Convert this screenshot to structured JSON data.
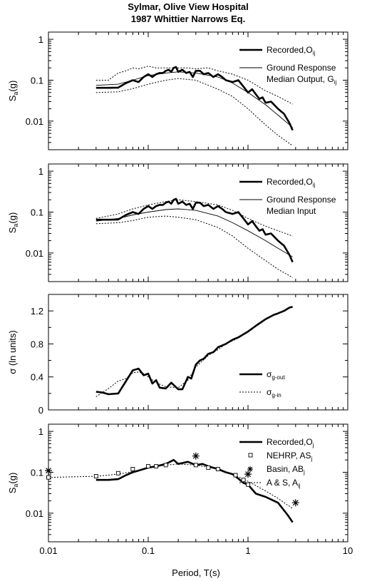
{
  "figure": {
    "title_line1": "Sylmar, Olive View Hospital",
    "title_line2": "1987 Whittier Narrows Eq.",
    "xlabel": "Period, T(s)"
  },
  "chart_data": [
    {
      "type": "line",
      "xscale": "log",
      "yscale": "log",
      "xlim": [
        0.01,
        10
      ],
      "ylim": [
        0.002,
        1.5
      ],
      "ylabel_main": "S",
      "ylabel_sub": "a",
      "ylabel_tail": "(g)",
      "yticks": [
        0.01,
        0.1,
        1
      ],
      "yticklabels": [
        "0.01",
        "0.1",
        "1"
      ],
      "legend": {
        "placement": "top-right",
        "items": [
          {
            "style": "thick",
            "text": "Recorded,O",
            "sub": "ij"
          },
          {
            "style": "thin",
            "text": "Ground Response",
            "text2": "Median Output, G",
            "sub2": "ij"
          }
        ]
      },
      "series": [
        {
          "style": "thick",
          "x": [
            0.03,
            0.04,
            0.05,
            0.06,
            0.07,
            0.08,
            0.09,
            0.1,
            0.11,
            0.12,
            0.13,
            0.14,
            0.15,
            0.16,
            0.17,
            0.18,
            0.19,
            0.2,
            0.22,
            0.24,
            0.26,
            0.28,
            0.3,
            0.33,
            0.36,
            0.4,
            0.45,
            0.5,
            0.55,
            0.6,
            0.7,
            0.8,
            0.9,
            1.0,
            1.1,
            1.2,
            1.3,
            1.4,
            1.5,
            1.7,
            2.0,
            2.3,
            2.6,
            2.8
          ],
          "y": [
            0.065,
            0.065,
            0.066,
            0.085,
            0.1,
            0.09,
            0.12,
            0.14,
            0.12,
            0.14,
            0.15,
            0.15,
            0.17,
            0.18,
            0.16,
            0.2,
            0.21,
            0.16,
            0.18,
            0.15,
            0.16,
            0.12,
            0.17,
            0.17,
            0.14,
            0.15,
            0.12,
            0.14,
            0.12,
            0.1,
            0.09,
            0.1,
            0.07,
            0.05,
            0.06,
            0.045,
            0.035,
            0.038,
            0.028,
            0.03,
            0.02,
            0.015,
            0.009,
            0.006
          ]
        },
        {
          "style": "thin",
          "x": [
            0.03,
            0.05,
            0.07,
            0.1,
            0.15,
            0.2,
            0.3,
            0.5,
            0.7,
            1.0,
            1.5,
            2.0,
            2.8
          ],
          "y": [
            0.075,
            0.08,
            0.1,
            0.13,
            0.15,
            0.16,
            0.15,
            0.12,
            0.085,
            0.05,
            0.025,
            0.014,
            0.007
          ]
        },
        {
          "style": "dotted",
          "x": [
            0.03,
            0.04,
            0.05,
            0.06,
            0.07,
            0.08,
            0.1,
            0.12,
            0.15,
            0.2,
            0.25,
            0.3,
            0.4,
            0.5,
            0.7,
            1.0,
            1.5,
            2.0,
            2.8
          ],
          "y": [
            0.1,
            0.1,
            0.15,
            0.17,
            0.2,
            0.19,
            0.22,
            0.2,
            0.2,
            0.2,
            0.2,
            0.19,
            0.2,
            0.17,
            0.14,
            0.1,
            0.055,
            0.04,
            0.026
          ]
        },
        {
          "style": "dotted",
          "x": [
            0.03,
            0.05,
            0.07,
            0.1,
            0.15,
            0.2,
            0.3,
            0.5,
            0.7,
            1.0,
            1.5,
            2.0,
            2.8
          ],
          "y": [
            0.05,
            0.052,
            0.062,
            0.08,
            0.1,
            0.11,
            0.1,
            0.06,
            0.04,
            0.02,
            0.008,
            0.0045,
            0.0025
          ]
        }
      ]
    },
    {
      "type": "line",
      "xscale": "log",
      "yscale": "log",
      "xlim": [
        0.01,
        10
      ],
      "ylim": [
        0.002,
        1.5
      ],
      "ylabel_main": "S",
      "ylabel_sub": "a",
      "ylabel_tail": "(g)",
      "yticks": [
        0.01,
        0.1,
        1
      ],
      "yticklabels": [
        "0.01",
        "0.1",
        "1"
      ],
      "legend": {
        "placement": "top-right",
        "items": [
          {
            "style": "thick",
            "text": "Recorded,O",
            "sub": "ij"
          },
          {
            "style": "thin",
            "text": "Ground Response",
            "text2": "Median Input",
            "sub2": ""
          }
        ]
      },
      "series": [
        {
          "style": "thick",
          "x": [
            0.03,
            0.04,
            0.05,
            0.06,
            0.07,
            0.08,
            0.09,
            0.1,
            0.11,
            0.12,
            0.13,
            0.14,
            0.15,
            0.16,
            0.17,
            0.18,
            0.19,
            0.2,
            0.22,
            0.24,
            0.26,
            0.28,
            0.3,
            0.33,
            0.36,
            0.4,
            0.45,
            0.5,
            0.55,
            0.6,
            0.7,
            0.8,
            0.9,
            1.0,
            1.1,
            1.2,
            1.3,
            1.4,
            1.5,
            1.7,
            2.0,
            2.3,
            2.6,
            2.8
          ],
          "y": [
            0.065,
            0.065,
            0.066,
            0.085,
            0.1,
            0.09,
            0.12,
            0.14,
            0.12,
            0.14,
            0.15,
            0.15,
            0.17,
            0.18,
            0.16,
            0.2,
            0.21,
            0.16,
            0.18,
            0.15,
            0.16,
            0.12,
            0.17,
            0.17,
            0.14,
            0.15,
            0.12,
            0.14,
            0.12,
            0.1,
            0.09,
            0.1,
            0.07,
            0.05,
            0.06,
            0.045,
            0.035,
            0.038,
            0.028,
            0.03,
            0.02,
            0.015,
            0.009,
            0.006
          ]
        },
        {
          "style": "thin",
          "x": [
            0.03,
            0.05,
            0.07,
            0.1,
            0.15,
            0.2,
            0.3,
            0.5,
            0.7,
            1.0,
            1.5,
            2.0,
            2.8
          ],
          "y": [
            0.06,
            0.07,
            0.085,
            0.1,
            0.115,
            0.12,
            0.11,
            0.08,
            0.055,
            0.035,
            0.02,
            0.013,
            0.008
          ]
        },
        {
          "style": "dotted",
          "x": [
            0.03,
            0.05,
            0.07,
            0.1,
            0.15,
            0.2,
            0.3,
            0.5,
            0.7,
            1.0,
            1.5,
            2.0,
            2.8
          ],
          "y": [
            0.07,
            0.09,
            0.12,
            0.15,
            0.18,
            0.2,
            0.18,
            0.15,
            0.11,
            0.07,
            0.045,
            0.035,
            0.026
          ]
        },
        {
          "style": "dotted",
          "x": [
            0.03,
            0.05,
            0.07,
            0.1,
            0.15,
            0.2,
            0.3,
            0.5,
            0.7,
            1.0,
            1.5,
            2.0,
            2.8
          ],
          "y": [
            0.052,
            0.055,
            0.062,
            0.075,
            0.08,
            0.075,
            0.065,
            0.042,
            0.026,
            0.013,
            0.0065,
            0.004,
            0.0025
          ]
        }
      ]
    },
    {
      "type": "line",
      "xscale": "log",
      "yscale": "linear",
      "xlim": [
        0.01,
        10
      ],
      "ylim": [
        0,
        1.4
      ],
      "ylabel_main": "σ (ln units)",
      "ylabel_sub": "",
      "ylabel_tail": "",
      "yticks": [
        0,
        0.4,
        0.8,
        1.2
      ],
      "yticklabels": [
        "0",
        "0.4",
        "0.8",
        "1.2"
      ],
      "legend": {
        "placement": "bottom-right",
        "items": [
          {
            "style": "thick",
            "text": "σ",
            "sub": "g-out"
          },
          {
            "style": "dotted",
            "text": "σ",
            "sub": "g-in"
          }
        ]
      },
      "series": [
        {
          "style": "thick",
          "x": [
            0.03,
            0.035,
            0.04,
            0.05,
            0.06,
            0.07,
            0.08,
            0.09,
            0.1,
            0.11,
            0.12,
            0.13,
            0.15,
            0.17,
            0.2,
            0.22,
            0.25,
            0.27,
            0.3,
            0.33,
            0.36,
            0.4,
            0.45,
            0.5,
            0.6,
            0.7,
            0.8,
            1.0,
            1.2,
            1.5,
            1.8,
            2.0,
            2.3,
            2.6,
            2.8
          ],
          "y": [
            0.22,
            0.21,
            0.19,
            0.2,
            0.35,
            0.48,
            0.5,
            0.42,
            0.44,
            0.32,
            0.36,
            0.27,
            0.26,
            0.33,
            0.25,
            0.25,
            0.4,
            0.38,
            0.55,
            0.6,
            0.62,
            0.68,
            0.7,
            0.76,
            0.8,
            0.85,
            0.88,
            0.95,
            1.02,
            1.1,
            1.15,
            1.17,
            1.2,
            1.24,
            1.25
          ]
        },
        {
          "style": "dotted",
          "x": [
            0.03,
            0.04,
            0.05,
            0.06,
            0.07,
            0.08,
            0.09,
            0.1,
            0.12,
            0.15,
            0.2,
            0.25,
            0.3,
            0.4,
            0.5,
            0.6,
            0.8,
            1.0,
            1.5,
            2.0,
            2.8
          ],
          "y": [
            0.16,
            0.26,
            0.35,
            0.38,
            0.45,
            0.46,
            0.44,
            0.4,
            0.33,
            0.28,
            0.27,
            0.36,
            0.52,
            0.66,
            0.73,
            0.8,
            0.87,
            0.95,
            1.1,
            1.17,
            1.25
          ]
        }
      ]
    },
    {
      "type": "line",
      "xscale": "log",
      "yscale": "log",
      "xlim": [
        0.01,
        10
      ],
      "ylim": [
        0.002,
        1.5
      ],
      "ylabel_main": "S",
      "ylabel_sub": "a",
      "ylabel_tail": "(g)",
      "yticks": [
        0.01,
        0.1,
        1
      ],
      "yticklabels": [
        "0.01",
        "0.1",
        "1"
      ],
      "xticks": [
        0.01,
        0.1,
        1,
        10
      ],
      "xticklabels": [
        "0.01",
        "0.1",
        "1",
        "10"
      ],
      "legend": {
        "placement": "top-right",
        "items": [
          {
            "style": "thick",
            "text": "Recorded,O",
            "sub": "j"
          },
          {
            "style": "square",
            "text": "NEHRP, AS",
            "sub": "j"
          },
          {
            "style": "star",
            "text": "Basin, AB",
            "sub": "j"
          },
          {
            "style": "dotted",
            "text": "A & S, A",
            "sub": "ij"
          }
        ]
      },
      "series": [
        {
          "style": "thick",
          "x": [
            0.03,
            0.04,
            0.05,
            0.06,
            0.07,
            0.08,
            0.1,
            0.12,
            0.15,
            0.18,
            0.2,
            0.25,
            0.3,
            0.35,
            0.4,
            0.5,
            0.6,
            0.7,
            0.8,
            0.9,
            1.0,
            1.2,
            1.5,
            2.0,
            2.5,
            2.8
          ],
          "y": [
            0.065,
            0.065,
            0.068,
            0.085,
            0.1,
            0.11,
            0.13,
            0.14,
            0.16,
            0.2,
            0.16,
            0.18,
            0.15,
            0.16,
            0.14,
            0.12,
            0.1,
            0.09,
            0.07,
            0.055,
            0.05,
            0.03,
            0.025,
            0.018,
            0.009,
            0.006
          ]
        },
        {
          "style": "dotted",
          "x": [
            0.01,
            0.03,
            0.05,
            0.08,
            0.1,
            0.15,
            0.2,
            0.3,
            0.5,
            0.7,
            1.0,
            1.5,
            2.0,
            2.8
          ],
          "y": [
            0.075,
            0.08,
            0.09,
            0.11,
            0.13,
            0.15,
            0.16,
            0.15,
            0.12,
            0.09,
            0.06,
            0.035,
            0.023,
            0.013
          ]
        },
        {
          "style": "square",
          "x": [
            0.01,
            0.03,
            0.05,
            0.07,
            0.1,
            0.12,
            0.15,
            0.3,
            0.4,
            0.5,
            0.75,
            0.9,
            1.0
          ],
          "y": [
            0.075,
            0.08,
            0.095,
            0.12,
            0.14,
            0.14,
            0.15,
            0.15,
            0.13,
            0.12,
            0.085,
            0.065,
            0.05
          ]
        },
        {
          "style": "star",
          "x": [
            0.01,
            0.3,
            1.0,
            3.0
          ],
          "y": [
            0.11,
            0.25,
            0.09,
            0.018
          ]
        }
      ]
    }
  ]
}
